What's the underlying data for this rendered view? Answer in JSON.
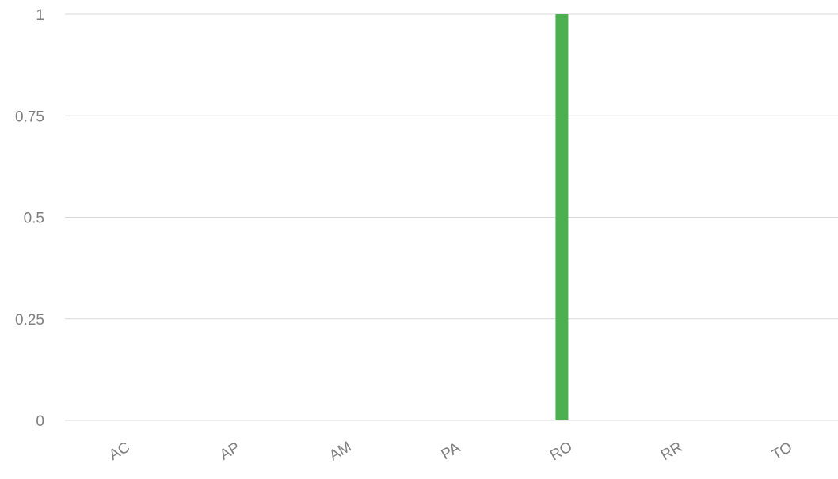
{
  "chart_data": {
    "type": "bar",
    "categories": [
      "AC",
      "AP",
      "AM",
      "PA",
      "RO",
      "RR",
      "TO"
    ],
    "values": [
      0,
      0,
      0,
      0,
      1,
      0,
      0
    ],
    "ylim": [
      0,
      1
    ],
    "y_ticks": [
      0,
      0.25,
      0.5,
      0.75,
      1
    ],
    "y_tick_labels": [
      "0",
      "0.25",
      "0.5",
      "0.75",
      "1"
    ],
    "grid": true,
    "legend": "none",
    "colors": {
      "bar": "#4caf50",
      "gridline": "#d9d9d9",
      "tick_text": "#7f7f7f"
    }
  }
}
